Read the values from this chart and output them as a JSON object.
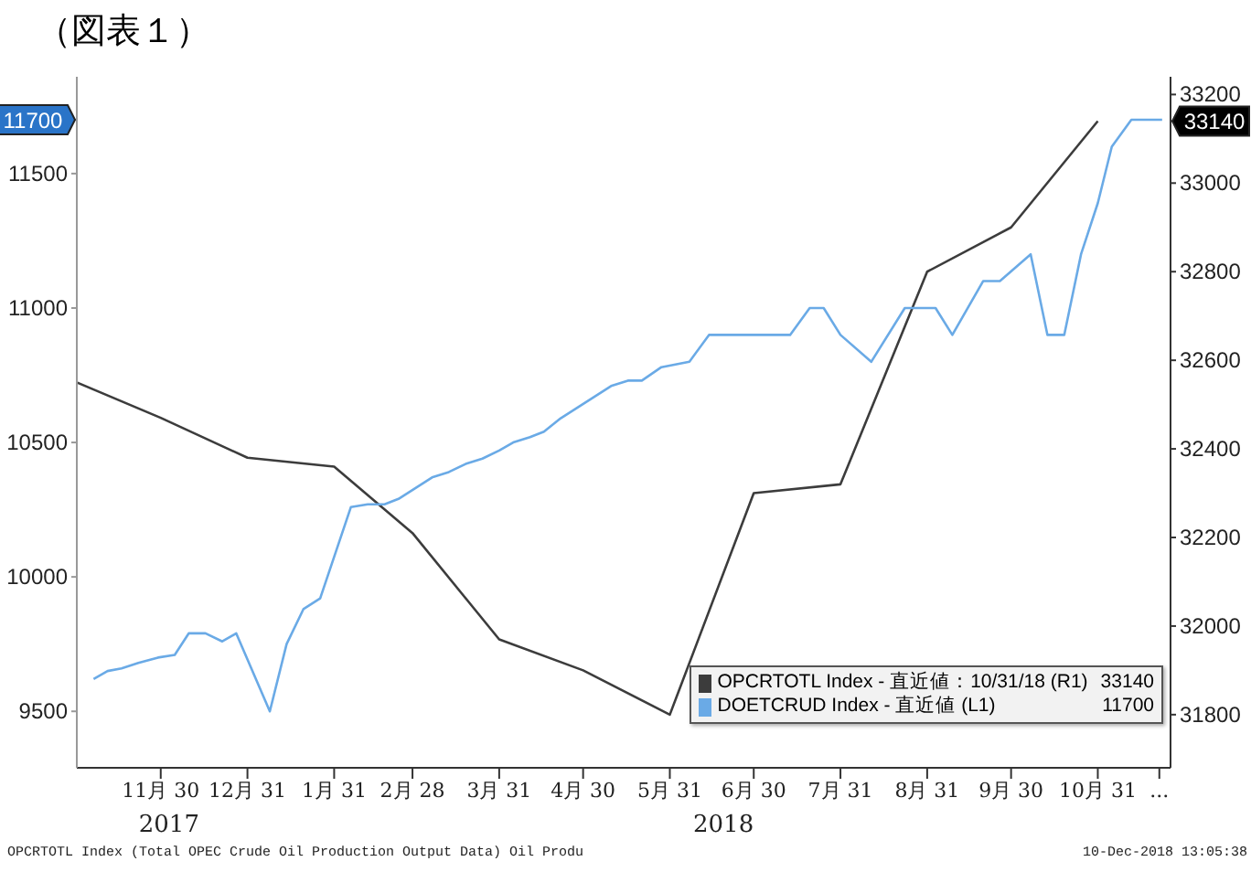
{
  "chart_data": {
    "type": "line",
    "title": "（図表１）",
    "xlim": [
      "2017-10-31",
      "2018-11-26"
    ],
    "xticks": [
      {
        "value": "2017-11-30",
        "label": "11月 30"
      },
      {
        "value": "2017-12-31",
        "label": "12月 31"
      },
      {
        "value": "2018-01-31",
        "label": "1月 31"
      },
      {
        "value": "2018-02-28",
        "label": "2月 28"
      },
      {
        "value": "2018-03-31",
        "label": "3月 31"
      },
      {
        "value": "2018-04-30",
        "label": "4月 30"
      },
      {
        "value": "2018-05-31",
        "label": "5月 31"
      },
      {
        "value": "2018-06-30",
        "label": "6月 30"
      },
      {
        "value": "2018-07-31",
        "label": "7月 31"
      },
      {
        "value": "2018-08-31",
        "label": "8月 31"
      },
      {
        "value": "2018-09-30",
        "label": "9月 30"
      },
      {
        "value": "2018-10-31",
        "label": "10月 31"
      },
      {
        "value": "2018-11-22",
        "label": "..."
      }
    ],
    "ylim": [
      9290,
      11860
    ],
    "yticks": [
      9500,
      10000,
      10500,
      11000,
      11500,
      {
        "value": 11700,
        "label": "11700"
      }
    ],
    "y2lim": [
      31680,
      33240
    ],
    "y2ticks": [
      31800,
      32000,
      32200,
      32400,
      32600,
      32800,
      33000,
      33200,
      {
        "value": 33140,
        "label": "33140"
      }
    ],
    "grid": false,
    "legend": "bottom right",
    "marker": "none",
    "line_style": "solid",
    "series": [
      {
        "name": "OPCRTOTL Index - 直近値：10/31/18 (R1) 33140",
        "color": "#3c3c3c",
        "axis": "y2",
        "x": [
          "2017-10-31",
          "2017-11-30",
          "2017-12-31",
          "2018-01-31",
          "2018-02-28",
          "2018-03-31",
          "2018-04-30",
          "2018-05-31",
          "2018-06-30",
          "2018-07-31",
          "2018-08-31",
          "2018-09-30",
          "2018-10-31"
        ],
        "values": [
          32550,
          32470,
          32380,
          32360,
          32210,
          31970,
          31900,
          31800,
          32300,
          32320,
          32800,
          32900,
          33140
        ]
      },
      {
        "name": "DOETCRUD Index - 直近値 (L1) 11700",
        "color": "#6aaae6",
        "axis": "y",
        "x": [
          "2017-11-06",
          "2017-11-11",
          "2017-11-16",
          "2017-11-22",
          "2017-11-29",
          "2017-12-05",
          "2017-12-10",
          "2017-12-16",
          "2017-12-22",
          "2017-12-27",
          "2018-01-08",
          "2018-01-14",
          "2018-01-20",
          "2018-01-26",
          "2018-02-06",
          "2018-02-12",
          "2018-02-18",
          "2018-02-23",
          "2018-03-01",
          "2018-03-07",
          "2018-03-13",
          "2018-03-19",
          "2018-03-25",
          "2018-03-31",
          "2018-04-05",
          "2018-04-11",
          "2018-04-16",
          "2018-04-22",
          "2018-04-28",
          "2018-05-04",
          "2018-05-10",
          "2018-05-16",
          "2018-05-21",
          "2018-05-28",
          "2018-06-02",
          "2018-06-07",
          "2018-06-14",
          "2018-07-13",
          "2018-07-20",
          "2018-07-25",
          "2018-07-31",
          "2018-08-11",
          "2018-08-23",
          "2018-09-03",
          "2018-09-09",
          "2018-09-20",
          "2018-09-26",
          "2018-10-07",
          "2018-10-13",
          "2018-10-19",
          "2018-10-25",
          "2018-10-31",
          "2018-11-05",
          "2018-11-12",
          "2018-11-23"
        ],
        "values": [
          9620,
          9650,
          9660,
          9680,
          9700,
          9710,
          9790,
          9790,
          9760,
          9790,
          9500,
          9750,
          9880,
          9920,
          10260,
          10270,
          10270,
          10290,
          10330,
          10370,
          10390,
          10420,
          10440,
          10470,
          10500,
          10520,
          10540,
          10590,
          10630,
          10670,
          10710,
          10730,
          10730,
          10780,
          10790,
          10800,
          10900,
          10900,
          11000,
          11000,
          10900,
          10800,
          11000,
          11000,
          10900,
          11100,
          11100,
          11200,
          10900,
          10900,
          11200,
          11390,
          11600,
          11700,
          11700
        ]
      }
    ],
    "annotations": [
      "2017",
      "2018",
      "OPCRTOTL Index (Total OPEC Crude Oil Production Output Data) Oil Produ",
      "10-Dec-2018 13:05:38"
    ]
  }
}
